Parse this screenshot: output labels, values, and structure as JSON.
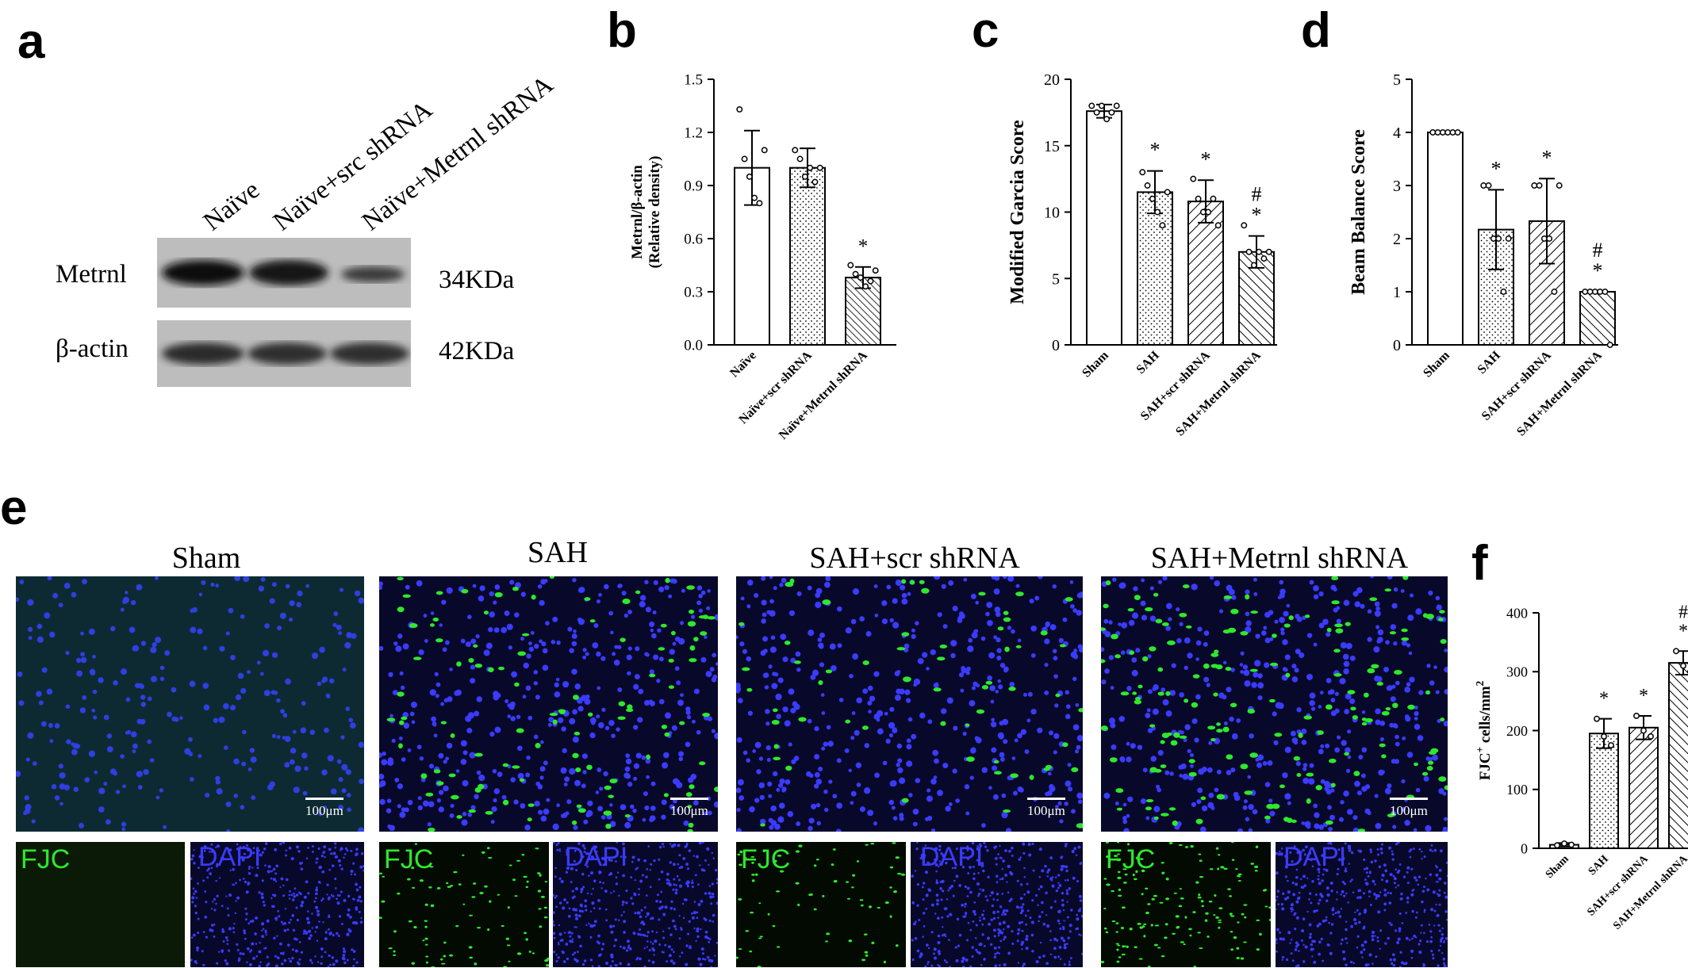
{
  "panels": {
    "a": "a",
    "b": "b",
    "c": "c",
    "d": "d",
    "e": "e",
    "f": "f"
  },
  "blot": {
    "lanes": [
      "Naïve",
      "Naïve+src shRNA",
      "Naïve+Metrnl shRNA"
    ],
    "rows": [
      {
        "protein": "Metrnl",
        "size": "34KDa"
      },
      {
        "protein": "β-actin",
        "size": "42KDa"
      }
    ]
  },
  "micrographs": {
    "groups": [
      "Sham",
      "SAH",
      "SAH+scr shRNA",
      "SAH+Metrnl shRNA"
    ],
    "scale_bar": "100μm",
    "channels": {
      "fjc": "FJC",
      "dapi": "DAPI"
    },
    "colors": {
      "fjc": "#2ee82e",
      "dapi": "#3b3bff"
    }
  },
  "chart_data": [
    {
      "id": "b",
      "type": "bar",
      "categories": [
        "Naïve",
        "Naïve+scr shRNA",
        "Naïve+Metrnl shRNA"
      ],
      "values": [
        1.0,
        1.0,
        0.38
      ],
      "errors": [
        0.21,
        0.11,
        0.06
      ],
      "points": [
        [
          1.33,
          1.05,
          0.95,
          0.83,
          0.8,
          1.1
        ],
        [
          1.1,
          1.05,
          0.95,
          1.0,
          0.92,
          1.0
        ],
        [
          0.45,
          0.4,
          0.38,
          0.33,
          0.36,
          0.42
        ]
      ],
      "significance": [
        "",
        "",
        "*"
      ],
      "patterns": [
        "open",
        "dots",
        "hatch-dense"
      ],
      "ylabel": [
        "Metrnl/β-actin",
        "(Relative density)"
      ],
      "yticks": [
        "0.0",
        "0.3",
        "0.6",
        "0.9",
        "1.2",
        "1.5"
      ],
      "ylim": [
        0,
        1.5
      ]
    },
    {
      "id": "c",
      "type": "bar",
      "categories": [
        "Sham",
        "SAH",
        "SAH+scr shRNA",
        "SAH+Metrnl shRNA"
      ],
      "values": [
        17.6,
        11.5,
        10.8,
        7.0
      ],
      "errors": [
        0.5,
        1.6,
        1.6,
        1.2
      ],
      "points": [
        [
          18,
          17.5,
          18,
          17,
          17.5,
          18
        ],
        [
          13,
          12,
          11,
          10,
          9,
          11.5
        ],
        [
          12.5,
          11,
          10,
          10,
          11,
          9
        ],
        [
          9,
          7,
          6,
          7,
          6.5,
          7
        ]
      ],
      "significance": [
        "",
        "*",
        "*",
        "#\n*"
      ],
      "patterns": [
        "open",
        "dots",
        "hatch-right",
        "hatch-left"
      ],
      "ylabel": [
        "Modified Garcia Score"
      ],
      "yticks": [
        "0",
        "5",
        "10",
        "15",
        "20"
      ],
      "ylim": [
        0,
        20
      ]
    },
    {
      "id": "d",
      "type": "bar",
      "categories": [
        "Sham",
        "SAH",
        "SAH+scr shRNA",
        "SAH+Metrnl shRNA"
      ],
      "values": [
        4.0,
        2.17,
        2.33,
        1.0
      ],
      "errors": [
        0.0,
        0.75,
        0.8,
        0.0
      ],
      "points": [
        [
          4,
          4,
          4,
          4,
          4,
          4
        ],
        [
          3,
          3,
          2,
          2,
          1,
          2
        ],
        [
          3,
          3,
          2,
          2,
          1,
          3
        ],
        [
          1,
          1,
          1,
          1,
          1,
          0
        ]
      ],
      "significance": [
        "",
        "*",
        "*",
        "#\n*"
      ],
      "patterns": [
        "open",
        "dots",
        "hatch-right",
        "hatch-left"
      ],
      "ylabel": [
        "Beam Balance Score"
      ],
      "yticks": [
        "0",
        "1",
        "2",
        "3",
        "4",
        "5"
      ],
      "ylim": [
        0,
        5
      ]
    },
    {
      "id": "f",
      "type": "bar",
      "categories": [
        "Sham",
        "SAH",
        "SAH+scr shRNA",
        "SAH+Metrnl shRNA"
      ],
      "values": [
        6,
        195,
        205,
        315
      ],
      "errors": [
        3,
        25,
        20,
        20
      ],
      "points": [
        [
          5,
          8,
          6
        ],
        [
          220,
          190,
          175
        ],
        [
          225,
          200,
          190
        ],
        [
          335,
          310,
          300
        ]
      ],
      "significance": [
        "",
        "*",
        "*",
        "#\n*"
      ],
      "patterns": [
        "open",
        "dots",
        "hatch-right",
        "hatch-left"
      ],
      "ylabel": [
        "FJC",
        "+",
        " cells/mm",
        "2"
      ],
      "yticks": [
        "0",
        "100",
        "200",
        "300",
        "400"
      ],
      "ylim": [
        0,
        400
      ]
    }
  ]
}
